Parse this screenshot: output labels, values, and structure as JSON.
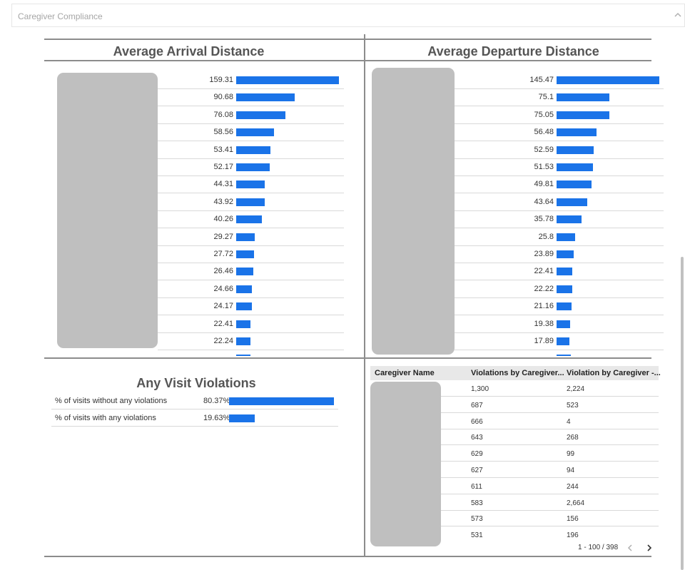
{
  "section": {
    "title": "Caregiver Compliance"
  },
  "arrival": {
    "title": "Average Arrival Distance",
    "max": 159.31,
    "values": [
      "159.31",
      "90.68",
      "76.08",
      "58.56",
      "53.41",
      "52.17",
      "44.31",
      "43.92",
      "40.26",
      "29.27",
      "27.72",
      "26.46",
      "24.66",
      "24.17",
      "22.41",
      "22.24"
    ]
  },
  "departure": {
    "title": "Average Departure Distance",
    "max": 145.47,
    "values": [
      "145.47",
      "75.1",
      "75.05",
      "56.48",
      "52.59",
      "51.53",
      "49.81",
      "43.64",
      "35.78",
      "25.8",
      "23.89",
      "22.41",
      "22.22",
      "21.16",
      "19.38",
      "17.89"
    ]
  },
  "violations": {
    "title": "Any Visit Violations",
    "rows": [
      {
        "label": "% of visits without any violations",
        "value": "80.37%",
        "pct": 80.37
      },
      {
        "label": "% of visits with any violations",
        "value": "19.63%",
        "pct": 19.63
      }
    ]
  },
  "table": {
    "headers": [
      "Caregiver Name",
      "Violations by Caregiver...",
      "Violation by Caregiver -..."
    ],
    "rows": [
      [
        "1,300",
        "2,224"
      ],
      [
        "687",
        "523"
      ],
      [
        "666",
        "4"
      ],
      [
        "643",
        "268"
      ],
      [
        "629",
        "99"
      ],
      [
        "627",
        "94"
      ],
      [
        "611",
        "244"
      ],
      [
        "583",
        "2,664"
      ],
      [
        "573",
        "156"
      ],
      [
        "531",
        "196"
      ]
    ],
    "pager": "1 - 100 / 398"
  },
  "colors": {
    "bar": "#1a73e8",
    "redact": "#bfbfbf"
  },
  "icons": {
    "collapse": "chevron-up-icon",
    "prev": "chevron-left-icon",
    "next": "chevron-right-icon"
  }
}
